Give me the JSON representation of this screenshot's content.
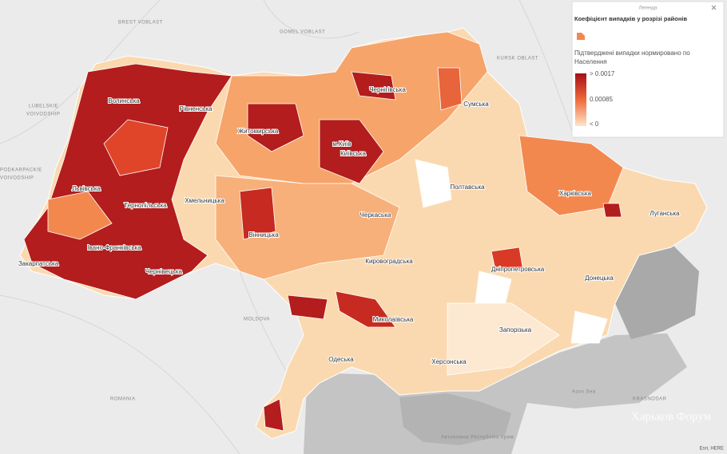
{
  "map": {
    "country_labels": [
      "BREST VOBLAST",
      "GOMEL VOBLAST",
      "KURSK OBLAST",
      "LUBELSKIE",
      "VOIVODSHIP",
      "PODKARPACKIE",
      "VOIVODSHIP",
      "MOLDOVA",
      "ROMANIA",
      "Azov Sea",
      "KRASNODAR",
      "Автономна Республіка Крим"
    ],
    "region_labels": [
      "Волинська",
      "Рівненська",
      "Житомирська",
      "Чернігівська",
      "Сумська",
      "м.Київ",
      "Київська",
      "Львівська",
      "Тернопільська",
      "Хмельницька",
      "Полтавська",
      "Харківська",
      "Луганська",
      "Черкаська",
      "Вінницька",
      "Івано-Франківська",
      "Закарпатська",
      "Чернівецька",
      "Кировоградська",
      "Дніпропетровська",
      "Донецька",
      "Запорізька",
      "Миколаївська",
      "Одеська",
      "Херсонська"
    ],
    "legend": {
      "heading": "Легенда",
      "title": "Коефіцієнт випадків у розрізі районів",
      "field": [
        "Підтверджені випадки нормировано по",
        "Населення"
      ],
      "stops": [
        "> 0.0017",
        "0.00085",
        "< 0"
      ]
    },
    "attribution": "Esri, HERE",
    "watermark": "Харьков Форум"
  }
}
